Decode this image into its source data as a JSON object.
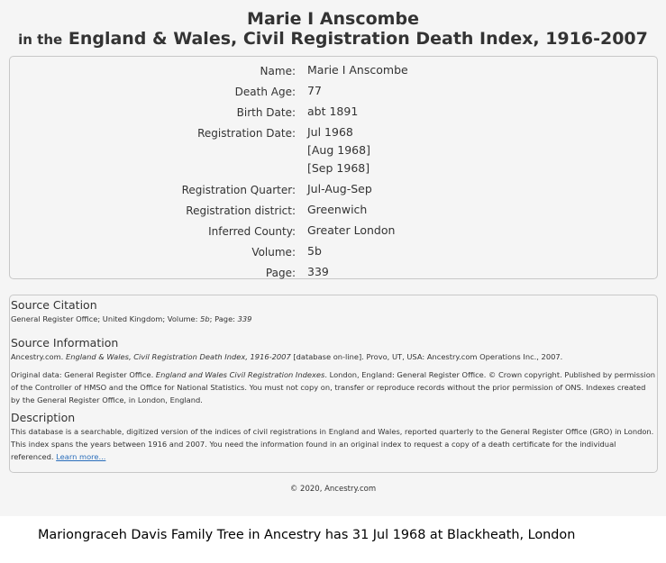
{
  "title": {
    "name": "Marie I Anscombe",
    "prefix": "in the",
    "collection": "England & Wales, Civil Registration Death Index, 1916-2007"
  },
  "details": {
    "name_label": "Name:",
    "name_value": "Marie I Anscombe",
    "death_age_label": "Death Age:",
    "death_age_value": "77",
    "birth_date_label": "Birth Date:",
    "birth_date_value": "abt 1891",
    "registration_date_label": "Registration Date:",
    "registration_date_value_1": "Jul 1968",
    "registration_date_value_2": "[Aug 1968]",
    "registration_date_value_3": "[Sep 1968]",
    "registration_quarter_label": "Registration Quarter:",
    "registration_quarter_value": "Jul-Aug-Sep",
    "registration_district_label": "Registration district:",
    "registration_district_value": "Greenwich",
    "inferred_county_label": "Inferred County:",
    "inferred_county_value": "Greater London",
    "volume_label": "Volume:",
    "volume_value": "5b",
    "page_label": "Page:",
    "page_value": "339"
  },
  "source": {
    "citation_heading": "Source Citation",
    "citation_a": "General Register Office; United Kingdom; Volume: ",
    "citation_vol": "5b",
    "citation_b": "; Page: ",
    "citation_page": "339",
    "info_heading": "Source Information",
    "info_a": "Ancestry.com. ",
    "info_title": "England & Wales, Civil Registration Death Index, 1916-2007",
    "info_b": " [database on-line]. Provo, UT, USA: Ancestry.com Operations Inc., 2007.",
    "original_a": "Original data: General Register Office. ",
    "original_title": "England and Wales Civil Registration Indexes",
    "original_b": ". London, England: General Register Office. © Crown copyright. Published by permission of the Controller of HMSO and the Office for National Statistics. You must not copy on, transfer or reproduce records without the prior permission of ONS. Indexes created by the General Register Office, in London, England.",
    "description_heading": "Description",
    "description_text": "This database is a searchable, digitized version of the indices of civil registrations in England and Wales, reported quarterly to the General Register Office (GRO) in London. This index spans the years between 1916 and 2007. You need the information found in an original index to request a copy of a death certificate for the individual referenced. ",
    "learn_more": "Learn more..."
  },
  "footer": "© 2020, Ancestry.com",
  "caption": "Mariongraceh Davis Family Tree in Ancestry has 31 Jul 1968 at Blackheath, London"
}
